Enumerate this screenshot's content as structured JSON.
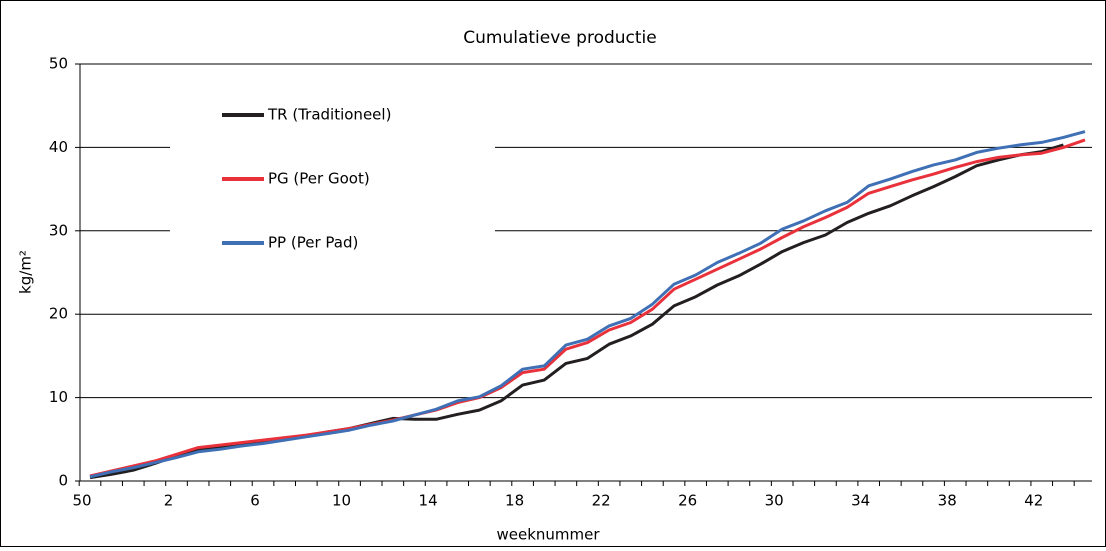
{
  "chart_data": {
    "type": "line",
    "title": "Cumulatieve productie",
    "x_label": "weeknummer",
    "y_label": "kg/m²",
    "categories": [
      "50",
      null,
      null,
      null,
      "2",
      null,
      null,
      null,
      "6",
      null,
      null,
      null,
      "10",
      null,
      null,
      null,
      "14",
      null,
      null,
      null,
      "18",
      null,
      null,
      null,
      "22",
      null,
      null,
      null,
      "26",
      null,
      null,
      null,
      "30",
      null,
      null,
      null,
      "34",
      null,
      null,
      null,
      "38",
      null,
      null,
      null,
      "42",
      null,
      null
    ],
    "series": [
      {
        "name": "TR (Traditioneel)",
        "color": "#231f20",
        "values": [
          0.4,
          0.8,
          1.3,
          2.1,
          3.0,
          3.8,
          4.0,
          4.3,
          4.6,
          5.0,
          5.4,
          5.9,
          6.3,
          6.9,
          7.5,
          7.4,
          7.4,
          8.0,
          8.5,
          9.6,
          11.5,
          12.1,
          14.1,
          14.7,
          16.4,
          17.4,
          18.8,
          21.0,
          22.1,
          23.5,
          24.6,
          26.0,
          27.5,
          28.6,
          29.5,
          31.0,
          32.1,
          33.0,
          34.2,
          35.3,
          36.5,
          37.8,
          38.5,
          39.1,
          39.5,
          40.3,
          null
        ]
      },
      {
        "name": "PG (Per Goot)",
        "color": "#e8313a",
        "values": [
          0.6,
          1.2,
          1.8,
          2.4,
          3.2,
          4.0,
          4.3,
          4.6,
          4.9,
          5.2,
          5.5,
          5.9,
          6.3,
          6.8,
          7.3,
          7.9,
          8.5,
          9.4,
          10.0,
          11.2,
          13.0,
          13.4,
          15.8,
          16.6,
          18.1,
          19.0,
          20.6,
          23.0,
          24.2,
          25.4,
          26.6,
          27.8,
          29.2,
          30.5,
          31.6,
          32.8,
          34.5,
          35.3,
          36.1,
          36.8,
          37.6,
          38.3,
          38.8,
          39.1,
          39.3,
          40.0,
          40.9
        ]
      },
      {
        "name": "PP (Per Pad)",
        "color": "#3f6fb5",
        "values": [
          0.5,
          1.1,
          1.6,
          2.2,
          2.8,
          3.5,
          3.8,
          4.2,
          4.5,
          4.9,
          5.3,
          5.7,
          6.1,
          6.7,
          7.2,
          7.9,
          8.6,
          9.6,
          10.1,
          11.4,
          13.4,
          13.8,
          16.3,
          17.0,
          18.6,
          19.5,
          21.2,
          23.6,
          24.7,
          26.2,
          27.3,
          28.5,
          30.2,
          31.2,
          32.4,
          33.4,
          35.4,
          36.2,
          37.1,
          37.9,
          38.5,
          39.4,
          39.9,
          40.3,
          40.6,
          41.2,
          41.9
        ]
      }
    ],
    "ylim": [
      0,
      50
    ],
    "yticks": [
      0,
      10,
      20,
      30,
      40,
      50
    ],
    "grid": true
  }
}
